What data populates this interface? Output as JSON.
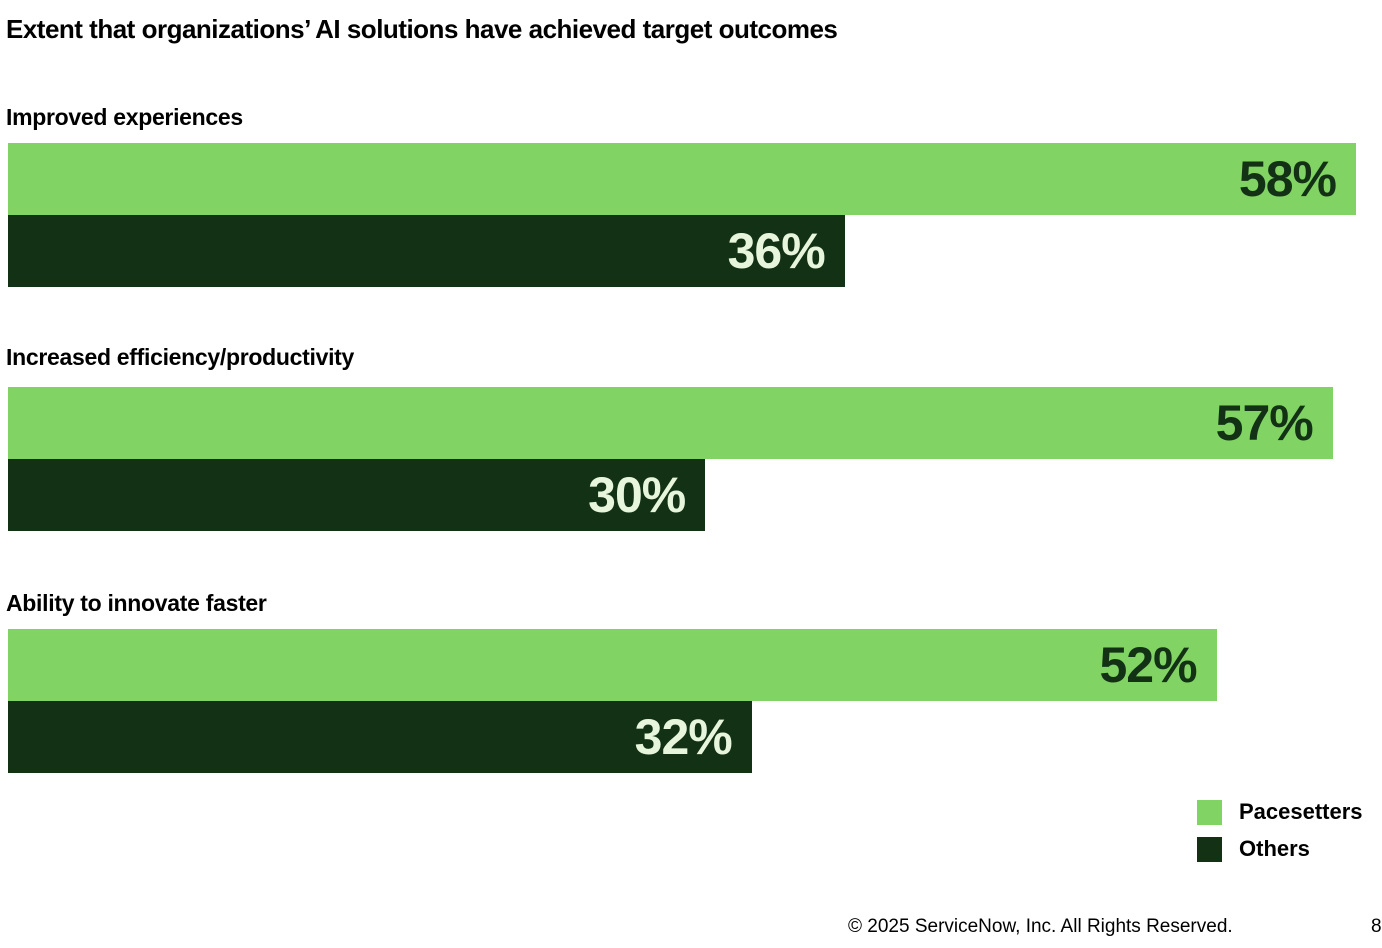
{
  "chart_data": {
    "type": "bar",
    "orientation": "horizontal",
    "title": "Extent that organizations’ AI solutions have achieved target outcomes",
    "categories": [
      "Improved experiences",
      "Increased efficiency/productivity",
      "Ability to innovate faster"
    ],
    "series": [
      {
        "name": "Pacesetters",
        "values": [
          58,
          57,
          52
        ],
        "color": "#81D363",
        "label_color": "#133215"
      },
      {
        "name": "Others",
        "values": [
          36,
          30,
          32
        ],
        "color": "#133215",
        "label_color": "#E6F5DC"
      }
    ],
    "value_suffix": "%",
    "grid": false,
    "legend_placement": "bottom-right"
  },
  "footer": {
    "copyright": "© 2025 ServiceNow, Inc. All Rights Reserved.",
    "page": "8"
  }
}
